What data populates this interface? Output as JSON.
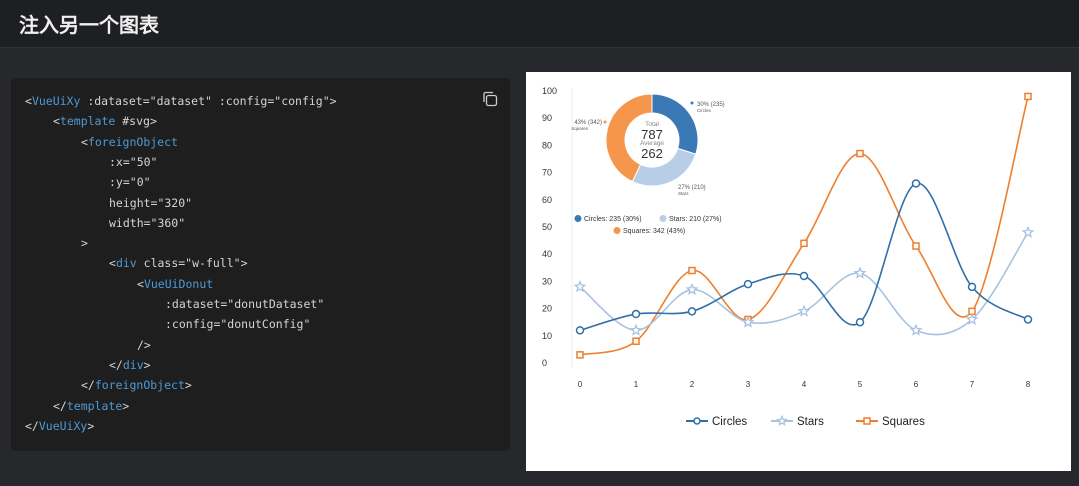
{
  "header": {
    "title": "注入另一个图表"
  },
  "code": {
    "lines": [
      {
        "indent": 0,
        "parts": [
          {
            "t": "<",
            "c": "p"
          },
          {
            "t": "VueUiXy",
            "c": "tag"
          },
          {
            "t": " :dataset=\"dataset\" :config=\"config\">",
            "c": "p"
          }
        ]
      },
      {
        "indent": 1,
        "parts": [
          {
            "t": "<",
            "c": "p"
          },
          {
            "t": "template",
            "c": "tag"
          },
          {
            "t": " #svg>",
            "c": "p"
          }
        ]
      },
      {
        "indent": 2,
        "parts": [
          {
            "t": "<",
            "c": "p"
          },
          {
            "t": "foreignObject",
            "c": "tag"
          }
        ]
      },
      {
        "indent": 3,
        "parts": [
          {
            "t": ":x=\"50\"",
            "c": "p"
          }
        ]
      },
      {
        "indent": 3,
        "parts": [
          {
            "t": ":y=\"0\"",
            "c": "p"
          }
        ]
      },
      {
        "indent": 3,
        "parts": [
          {
            "t": "height=\"320\"",
            "c": "p"
          }
        ]
      },
      {
        "indent": 3,
        "parts": [
          {
            "t": "width=\"360\"",
            "c": "p"
          }
        ]
      },
      {
        "indent": 2,
        "parts": [
          {
            "t": ">",
            "c": "p"
          }
        ]
      },
      {
        "indent": 3,
        "parts": [
          {
            "t": "<",
            "c": "p"
          },
          {
            "t": "div",
            "c": "tag"
          },
          {
            "t": " class=\"w-full\">",
            "c": "p"
          }
        ]
      },
      {
        "indent": 4,
        "parts": [
          {
            "t": "<",
            "c": "p"
          },
          {
            "t": "VueUiDonut",
            "c": "tag"
          }
        ]
      },
      {
        "indent": 5,
        "parts": [
          {
            "t": ":dataset=\"donutDataset\"",
            "c": "p"
          }
        ]
      },
      {
        "indent": 5,
        "parts": [
          {
            "t": ":config=\"donutConfig\"",
            "c": "p"
          }
        ]
      },
      {
        "indent": 4,
        "parts": [
          {
            "t": "/>",
            "c": "p"
          }
        ]
      },
      {
        "indent": 3,
        "parts": [
          {
            "t": "</",
            "c": "p"
          },
          {
            "t": "div",
            "c": "tag"
          },
          {
            "t": ">",
            "c": "p"
          }
        ]
      },
      {
        "indent": 2,
        "parts": [
          {
            "t": "</",
            "c": "p"
          },
          {
            "t": "foreignObject",
            "c": "tag"
          },
          {
            "t": ">",
            "c": "p"
          }
        ]
      },
      {
        "indent": 1,
        "parts": [
          {
            "t": "</",
            "c": "p"
          },
          {
            "t": "template",
            "c": "tag"
          },
          {
            "t": ">",
            "c": "p"
          }
        ]
      },
      {
        "indent": 0,
        "parts": [
          {
            "t": "</",
            "c": "p"
          },
          {
            "t": "VueUiXy",
            "c": "tag"
          },
          {
            "t": ">",
            "c": "p"
          }
        ]
      }
    ],
    "copy_icon": "copy-icon"
  },
  "donut": {
    "total_label": "Total",
    "total": "787",
    "average_label": "Average",
    "average": "262",
    "slices": [
      {
        "name": "Circles",
        "value": 235,
        "pct": 30,
        "label": "30% (235)",
        "color": "#3b79b6"
      },
      {
        "name": "Stars",
        "value": 210,
        "pct": 27,
        "label": "27% (210)",
        "color": "#b8cde6"
      },
      {
        "name": "Squares",
        "value": 342,
        "pct": 43,
        "label": "43% (342)",
        "color": "#f6964d"
      }
    ],
    "legend": [
      "Circles: 235 (30%)",
      "Stars: 210 (27%)",
      "Squares: 342 (43%)"
    ]
  },
  "chart_data": {
    "type": "line",
    "x": [
      0,
      1,
      2,
      3,
      4,
      5,
      6,
      7,
      8
    ],
    "x_tick_labels": [
      "0",
      "1",
      "2",
      "3",
      "4",
      "5",
      "6",
      "7",
      "8"
    ],
    "y_tick_labels": [
      "0",
      "10",
      "20",
      "30",
      "40",
      "50",
      "60",
      "70",
      "80",
      "90",
      "100"
    ],
    "ylim": [
      0,
      100
    ],
    "series": [
      {
        "name": "Circles",
        "color": "#2f6fa8",
        "marker": "circle",
        "values": [
          12,
          18,
          19,
          29,
          32,
          15,
          66,
          28,
          16
        ]
      },
      {
        "name": "Stars",
        "color": "#a9c2e0",
        "marker": "star",
        "values": [
          28,
          12,
          27,
          15,
          19,
          33,
          12,
          16,
          48
        ]
      },
      {
        "name": "Squares",
        "color": "#ef7f2c",
        "marker": "square",
        "values": [
          3,
          8,
          34,
          16,
          44,
          77,
          43,
          19,
          98
        ]
      }
    ],
    "legend_position": "bottom"
  }
}
